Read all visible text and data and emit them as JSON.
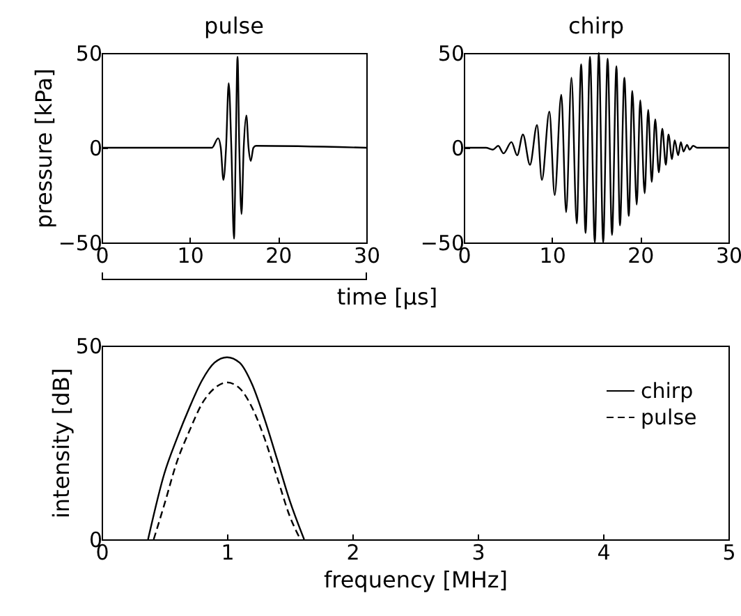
{
  "chart_data": [
    {
      "type": "line",
      "title": "pulse",
      "xlabel": "time [μs]",
      "ylabel": "pressure [kPa]",
      "xlim": [
        0,
        30
      ],
      "xticks": [
        0,
        10,
        20,
        30
      ],
      "ylim": [
        -50,
        50
      ],
      "yticks": [
        -50,
        0,
        50
      ],
      "series": [
        {
          "color": "#000000",
          "x": [
            0,
            12.5,
            13.2,
            13.5,
            13.8,
            14.1,
            14.4,
            14.7,
            15.0,
            15.2,
            15.4,
            15.6,
            15.85,
            16.1,
            16.4,
            16.65,
            16.9,
            17.2,
            17.5,
            30
          ],
          "values": [
            0,
            0,
            5,
            0,
            -17,
            0,
            34,
            0,
            -48,
            0,
            48,
            0,
            -35,
            0,
            17,
            0,
            -7,
            0,
            1,
            0
          ]
        }
      ]
    },
    {
      "type": "line",
      "title": "chirp",
      "xlim": [
        0,
        30
      ],
      "xticks": [
        0,
        10,
        20,
        30
      ],
      "ylim": [
        -50,
        50
      ],
      "yticks": [
        -50,
        0,
        50
      ],
      "series": [
        {
          "color": "#000000",
          "x": [
            0,
            2.5,
            3.3,
            3.9,
            4.5,
            5.4,
            6.05,
            6.7,
            7.5,
            8.3,
            8.85,
            9.7,
            10.3,
            11.05,
            11.6,
            12.2,
            12.8,
            13.3,
            13.8,
            14.3,
            14.85,
            15.3,
            15.8,
            16.3,
            16.8,
            17.3,
            17.7,
            18.2,
            18.7,
            19.1,
            19.6,
            20.0,
            20.5,
            20.9,
            21.3,
            21.7,
            22.1,
            22.5,
            22.9,
            23.2,
            23.6,
            23.9,
            24.3,
            24.6,
            24.9,
            25.3,
            25.6,
            26,
            26.5,
            30
          ],
          "values": [
            0,
            0,
            -1,
            1,
            -3,
            3,
            -4,
            7,
            -9,
            12,
            -17,
            19,
            -25,
            28,
            -34,
            37,
            -40,
            44,
            -45,
            48,
            -50,
            50,
            -50,
            47,
            -46,
            43,
            -41,
            37,
            -36,
            30,
            -30,
            25,
            -24,
            20,
            -18,
            15,
            -13,
            10,
            -9,
            7,
            -6,
            4,
            -4,
            3,
            -2,
            1.5,
            -1,
            1,
            0,
            0
          ]
        }
      ]
    },
    {
      "type": "line",
      "xlabel": "frequency [MHz]",
      "ylabel": "intensity [dB]",
      "xlim": [
        0,
        5
      ],
      "xticks": [
        0,
        1,
        2,
        3,
        4,
        5
      ],
      "ylim": [
        0,
        50
      ],
      "yticks": [
        0,
        50
      ],
      "legend": "top right",
      "series": [
        {
          "name": "chirp",
          "color": "#000000",
          "line_style": "solid",
          "x": [
            0.37,
            0.5,
            0.6,
            0.7,
            0.8,
            0.9,
            1.0,
            1.1,
            1.2,
            1.3,
            1.4,
            1.5,
            1.615
          ],
          "values": [
            0,
            17,
            26,
            34,
            41,
            45.6,
            47,
            45.6,
            40,
            31,
            20.6,
            10,
            0
          ]
        },
        {
          "name": "pulse",
          "color": "#000000",
          "line_style": "dashed",
          "x": [
            0.415,
            0.5,
            0.6,
            0.7,
            0.8,
            0.9,
            1.0,
            1.1,
            1.2,
            1.3,
            1.4,
            1.5,
            1.585
          ],
          "values": [
            0,
            9,
            20,
            28,
            35,
            39,
            40.5,
            39,
            34,
            26,
            16,
            6,
            0
          ]
        }
      ]
    }
  ]
}
